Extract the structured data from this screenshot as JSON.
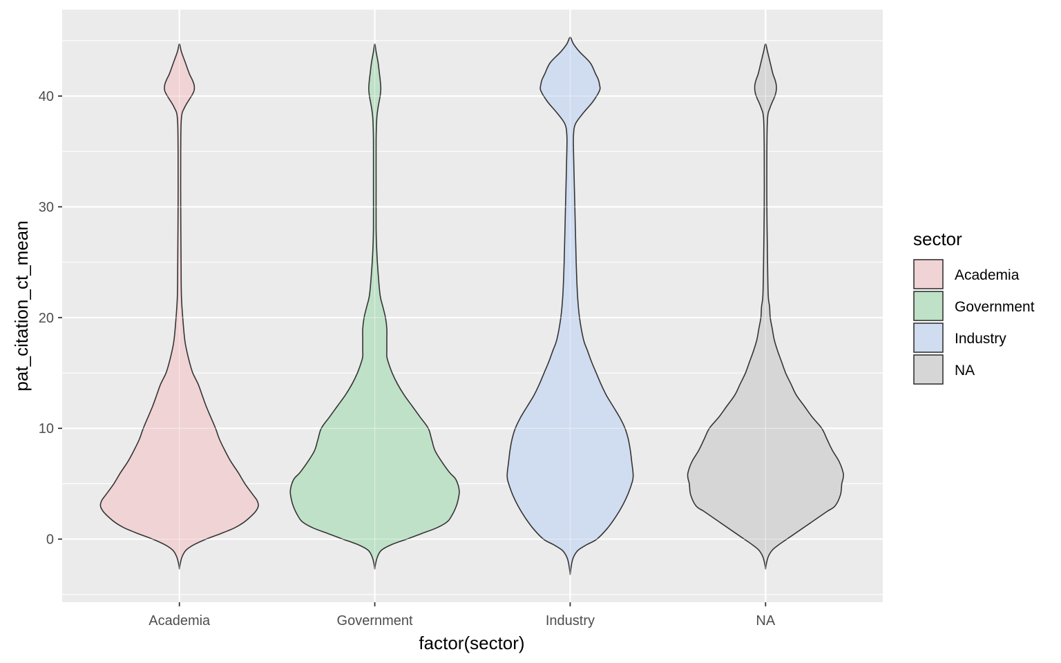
{
  "chart_data": {
    "type": "violin",
    "categories": [
      "Academia",
      "Government",
      "Industry",
      "NA"
    ],
    "xlabel": "factor(sector)",
    "ylabel": "pat_citation_ct_mean",
    "ylim": [
      -5.7,
      47.8
    ],
    "yticks": [
      0,
      10,
      20,
      30,
      40
    ],
    "grid": true,
    "legend": {
      "title": "sector",
      "position": "right",
      "entries": [
        "Academia",
        "Government",
        "Industry",
        "NA"
      ]
    },
    "colors": {
      "Academia": "#f0d3d5",
      "Government": "#bfe1c7",
      "Industry": "#d0dcef",
      "NA": "#d6d6d6",
      "panel": "#ebebeb",
      "outline": "#333333"
    },
    "violins": [
      {
        "name": "Academia",
        "range": [
          -2.7,
          44.7
        ],
        "profile": [
          [
            -2.7,
            0
          ],
          [
            -2.3,
            1
          ],
          [
            -1.6,
            4
          ],
          [
            -1,
            10
          ],
          [
            -0.5,
            22
          ],
          [
            0,
            40
          ],
          [
            0.5,
            62
          ],
          [
            1,
            82
          ],
          [
            1.5,
            96
          ],
          [
            2,
            106
          ],
          [
            2.5,
            114
          ],
          [
            3,
            118
          ],
          [
            3.5,
            116
          ],
          [
            4,
            110
          ],
          [
            5,
            98
          ],
          [
            6,
            88
          ],
          [
            7,
            77
          ],
          [
            8,
            68
          ],
          [
            9,
            60
          ],
          [
            10,
            54
          ],
          [
            11,
            47
          ],
          [
            12,
            40
          ],
          [
            13,
            34
          ],
          [
            14,
            28
          ],
          [
            15,
            20
          ],
          [
            16,
            15
          ],
          [
            17,
            11
          ],
          [
            18,
            8
          ],
          [
            20,
            5
          ],
          [
            22,
            3
          ],
          [
            25,
            2.5
          ],
          [
            30,
            2
          ],
          [
            35,
            2
          ],
          [
            38,
            3
          ],
          [
            39,
            8
          ],
          [
            40,
            18
          ],
          [
            40.5,
            22
          ],
          [
            41,
            22
          ],
          [
            41.5,
            19
          ],
          [
            42,
            15
          ],
          [
            43,
            9
          ],
          [
            44,
            3
          ],
          [
            44.7,
            0
          ]
        ]
      },
      {
        "name": "Government",
        "range": [
          -2.7,
          44.7
        ],
        "profile": [
          [
            -2.7,
            0
          ],
          [
            -2.3,
            1
          ],
          [
            -1.6,
            4
          ],
          [
            -1,
            10
          ],
          [
            -0.5,
            25
          ],
          [
            0,
            48
          ],
          [
            0.5,
            70
          ],
          [
            1,
            92
          ],
          [
            1.5,
            107
          ],
          [
            2,
            114
          ],
          [
            3,
            122
          ],
          [
            4,
            126
          ],
          [
            4.5,
            126
          ],
          [
            5,
            124
          ],
          [
            5.5,
            120
          ],
          [
            6,
            112
          ],
          [
            7,
            100
          ],
          [
            8,
            90
          ],
          [
            9,
            85
          ],
          [
            10,
            80
          ],
          [
            11,
            68
          ],
          [
            12,
            56
          ],
          [
            13,
            44
          ],
          [
            14,
            34
          ],
          [
            15,
            26
          ],
          [
            16,
            20
          ],
          [
            16.5,
            18
          ],
          [
            17,
            18
          ],
          [
            18,
            18
          ],
          [
            19,
            18
          ],
          [
            20,
            16
          ],
          [
            21,
            12
          ],
          [
            22,
            8
          ],
          [
            24,
            5
          ],
          [
            26,
            3
          ],
          [
            28,
            2
          ],
          [
            32,
            2
          ],
          [
            36,
            2
          ],
          [
            38,
            3
          ],
          [
            39,
            5
          ],
          [
            40,
            8
          ],
          [
            40.7,
            9
          ],
          [
            41.5,
            8
          ],
          [
            42,
            7
          ],
          [
            43,
            5
          ],
          [
            44,
            2
          ],
          [
            44.7,
            0
          ]
        ]
      },
      {
        "name": "Industry",
        "range": [
          -3.2,
          45.3
        ],
        "profile": [
          [
            -3.2,
            0
          ],
          [
            -2.7,
            1
          ],
          [
            -2,
            3
          ],
          [
            -1.5,
            6
          ],
          [
            -1,
            12
          ],
          [
            -0.5,
            25
          ],
          [
            0,
            40
          ],
          [
            1,
            56
          ],
          [
            2,
            68
          ],
          [
            3,
            78
          ],
          [
            4,
            86
          ],
          [
            5,
            92
          ],
          [
            5.5,
            94
          ],
          [
            6,
            94
          ],
          [
            7,
            92
          ],
          [
            8,
            90
          ],
          [
            9,
            87
          ],
          [
            10,
            82
          ],
          [
            11,
            74
          ],
          [
            12,
            64
          ],
          [
            13,
            54
          ],
          [
            14,
            46
          ],
          [
            15,
            39
          ],
          [
            16,
            32
          ],
          [
            17,
            26
          ],
          [
            18,
            20
          ],
          [
            20,
            14
          ],
          [
            22,
            11
          ],
          [
            25,
            9
          ],
          [
            30,
            7
          ],
          [
            35,
            5
          ],
          [
            36.5,
            5
          ],
          [
            37.5,
            8
          ],
          [
            38.5,
            20
          ],
          [
            39.5,
            34
          ],
          [
            40.5,
            44
          ],
          [
            41,
            44
          ],
          [
            41.5,
            42
          ],
          [
            42,
            38
          ],
          [
            43,
            30
          ],
          [
            44,
            14
          ],
          [
            44.7,
            5
          ],
          [
            45.3,
            0
          ]
        ]
      },
      {
        "name": "NA",
        "range": [
          -2.7,
          44.7
        ],
        "profile": [
          [
            -2.7,
            0
          ],
          [
            -2.3,
            1
          ],
          [
            -1.6,
            4
          ],
          [
            -1,
            10
          ],
          [
            -0.5,
            20
          ],
          [
            0,
            32
          ],
          [
            0.5,
            44
          ],
          [
            1,
            56
          ],
          [
            1.5,
            68
          ],
          [
            2,
            80
          ],
          [
            2.5,
            92
          ],
          [
            3,
            104
          ],
          [
            4,
            112
          ],
          [
            5,
            114
          ],
          [
            5.5,
            116
          ],
          [
            6,
            116
          ],
          [
            7,
            110
          ],
          [
            8,
            100
          ],
          [
            9,
            92
          ],
          [
            10,
            84
          ],
          [
            11,
            70
          ],
          [
            12,
            58
          ],
          [
            13,
            46
          ],
          [
            14,
            38
          ],
          [
            15,
            30
          ],
          [
            16,
            24
          ],
          [
            17,
            18
          ],
          [
            18,
            13
          ],
          [
            19,
            10
          ],
          [
            20,
            7
          ],
          [
            21,
            6
          ],
          [
            22,
            4
          ],
          [
            25,
            3
          ],
          [
            30,
            2
          ],
          [
            35,
            2
          ],
          [
            38,
            3
          ],
          [
            39,
            7
          ],
          [
            40,
            14
          ],
          [
            40.5,
            16
          ],
          [
            41,
            16
          ],
          [
            41.5,
            14
          ],
          [
            42,
            11
          ],
          [
            43,
            7
          ],
          [
            44,
            3
          ],
          [
            44.7,
            0
          ]
        ]
      }
    ]
  }
}
